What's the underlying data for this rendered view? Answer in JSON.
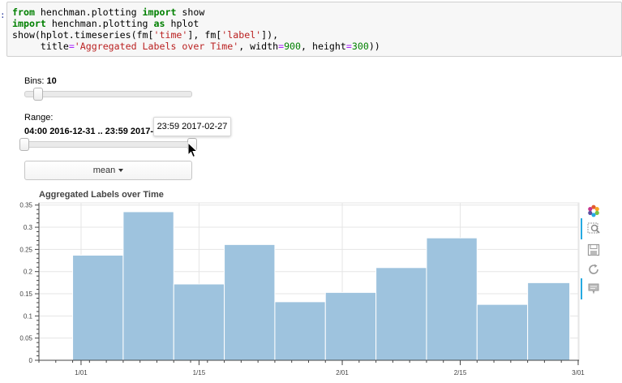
{
  "notebook": {
    "prompt_char": ":",
    "code_lines": [
      [
        {
          "t": "from",
          "c": "kw"
        },
        {
          "t": " henchman.plotting ",
          "c": ""
        },
        {
          "t": "import",
          "c": "kw"
        },
        {
          "t": " show",
          "c": ""
        }
      ],
      [
        {
          "t": "import",
          "c": "kw"
        },
        {
          "t": " henchman.plotting ",
          "c": ""
        },
        {
          "t": "as",
          "c": "kw"
        },
        {
          "t": " hplot",
          "c": ""
        }
      ],
      [
        {
          "t": "show(hplot.timeseries(fm[",
          "c": ""
        },
        {
          "t": "'time'",
          "c": "str"
        },
        {
          "t": "], fm[",
          "c": ""
        },
        {
          "t": "'label'",
          "c": "str"
        },
        {
          "t": "]),",
          "c": ""
        }
      ],
      [
        {
          "t": "     title",
          "c": ""
        },
        {
          "t": "=",
          "c": "op"
        },
        {
          "t": "'Aggregated Labels over Time'",
          "c": "str"
        },
        {
          "t": ", width",
          "c": ""
        },
        {
          "t": "=",
          "c": "op"
        },
        {
          "t": "900",
          "c": "num"
        },
        {
          "t": ", height",
          "c": ""
        },
        {
          "t": "=",
          "c": "op"
        },
        {
          "t": "300",
          "c": "num"
        },
        {
          "t": "))",
          "c": ""
        }
      ]
    ]
  },
  "widgets": {
    "bins": {
      "label": "Bins:",
      "value": "10",
      "fraction": 0.03
    },
    "range": {
      "label": "Range:",
      "value": "04:00 2016-12-31 .. 23:59 2017-0",
      "start_fraction": 0.0,
      "end_fraction": 1.0,
      "tooltip": "23:59 2017-02-27"
    },
    "dropdown": {
      "selected": "mean"
    }
  },
  "chart_data": {
    "type": "bar",
    "title": "Aggregated Labels over Time",
    "xlabel": "",
    "ylabel": "",
    "x_ticks": [
      "1/01",
      "1/15",
      "2/01",
      "2/15",
      "3/01"
    ],
    "y_ticks": [
      "0",
      "0.05",
      "0.1",
      "0.15",
      "0.2",
      "0.25",
      "0.3",
      "0.35"
    ],
    "ylim": [
      0,
      0.355
    ],
    "bin_edges": [
      "2016-12-31",
      "2017-01-06",
      "2017-01-12",
      "2017-01-18",
      "2017-01-24",
      "2017-01-30",
      "2017-02-05",
      "2017-02-11",
      "2017-02-17",
      "2017-02-23",
      "2017-02-28"
    ],
    "values": [
      0.237,
      0.335,
      0.172,
      0.261,
      0.132,
      0.153,
      0.209,
      0.276,
      0.126,
      0.175
    ],
    "bar_color": "#9ec3de",
    "grid": true
  },
  "toolbar": {
    "tools": [
      {
        "name": "bokeh-logo-icon",
        "active": false,
        "clickable": false
      },
      {
        "name": "box-zoom-icon",
        "active": true,
        "clickable": true
      },
      {
        "name": "save-icon",
        "active": false,
        "clickable": true
      },
      {
        "name": "reset-icon",
        "active": false,
        "clickable": true
      },
      {
        "name": "hover-icon",
        "active": true,
        "clickable": true
      }
    ]
  }
}
